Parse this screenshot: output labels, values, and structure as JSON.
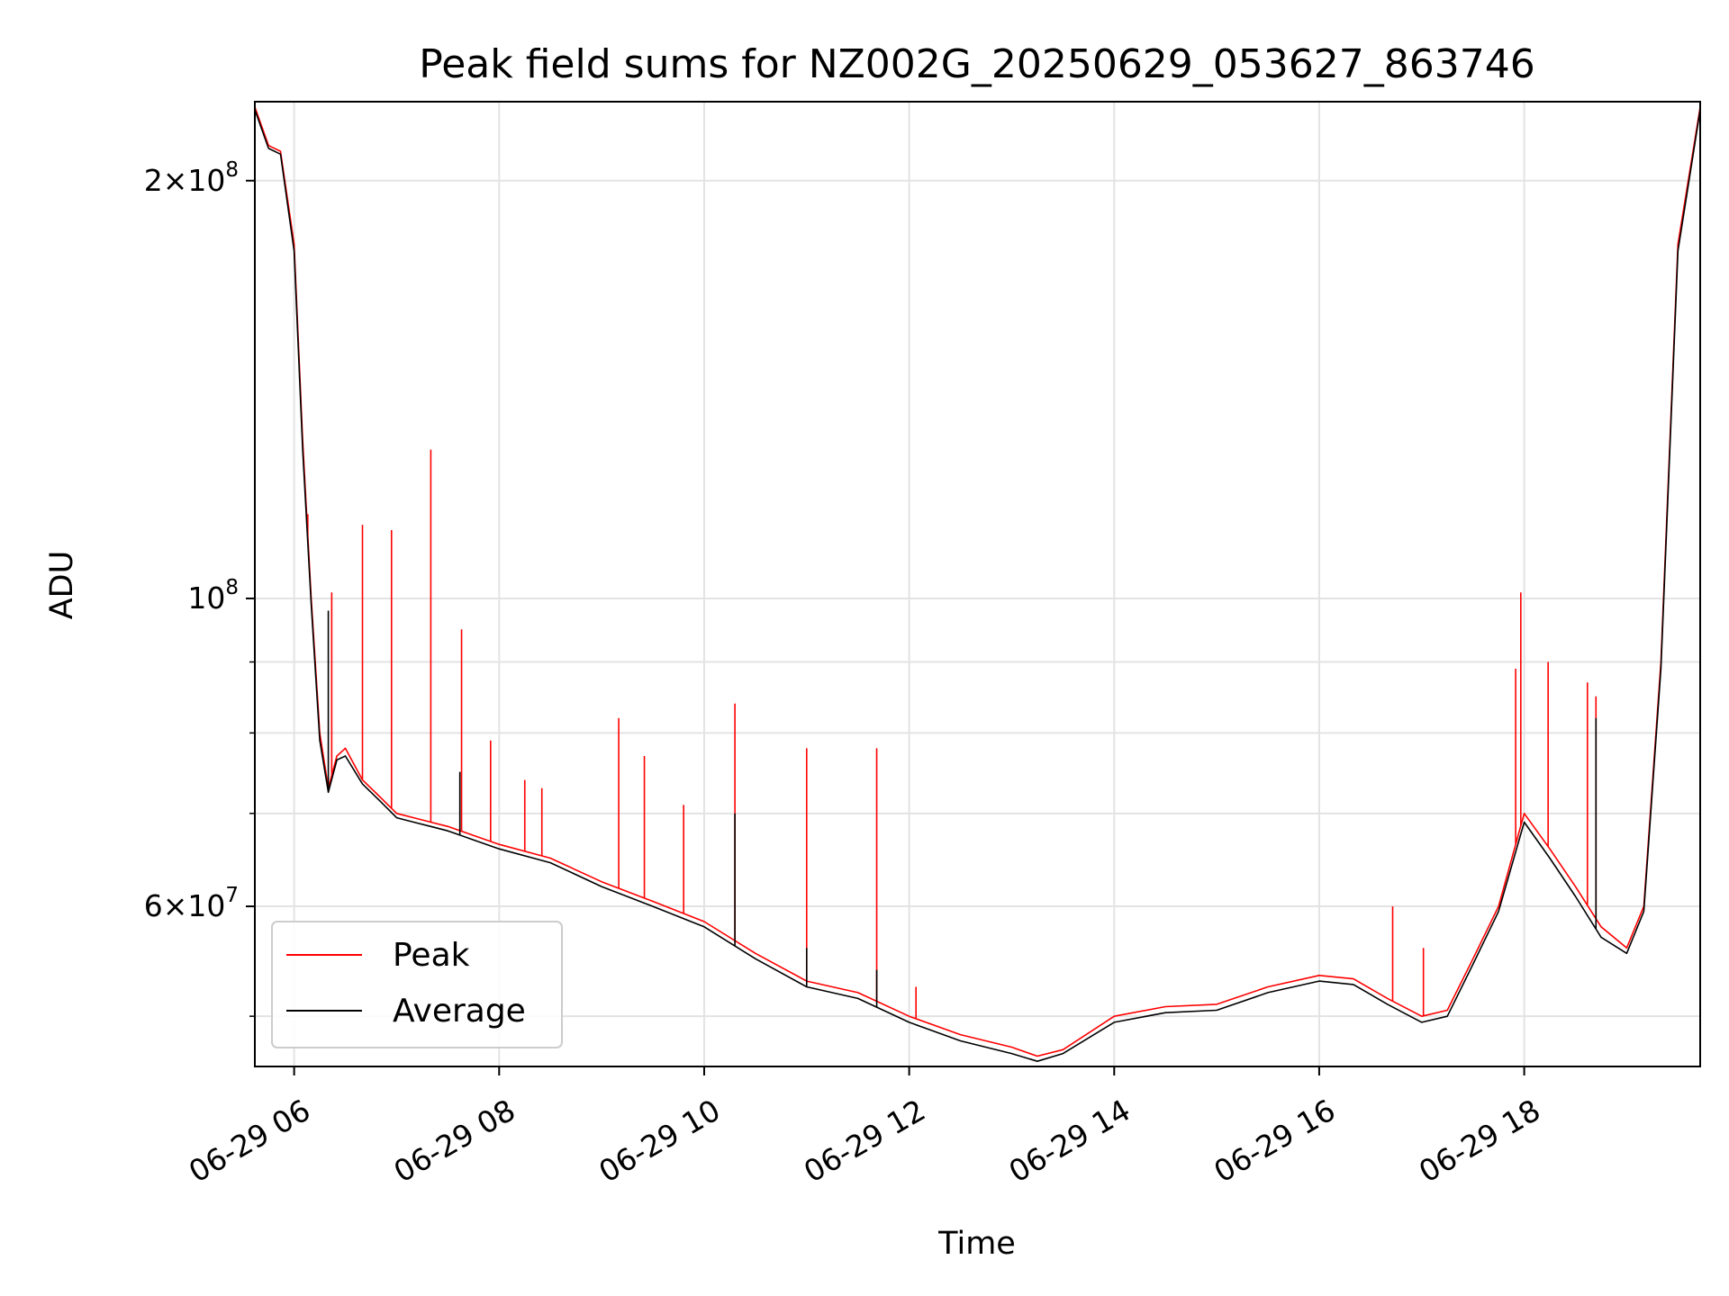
{
  "chart_data": {
    "type": "line",
    "title": "Peak field sums for NZ002G_20250629_053627_863746",
    "xlabel": "Time",
    "ylabel": "ADU",
    "y_scale": "log",
    "ylim": [
      46000000,
      228000000
    ],
    "xlim": [
      "2025-06-29 05:37",
      "2025-06-29 19:43"
    ],
    "grid": true,
    "legend_position": "lower-left",
    "x_tick_labels": [
      "06-29 06",
      "06-29 08",
      "06-29 10",
      "06-29 12",
      "06-29 14",
      "06-29 16",
      "06-29 18"
    ],
    "x_tick_values": [
      "2025-06-29 06:00",
      "2025-06-29 08:00",
      "2025-06-29 10:00",
      "2025-06-29 12:00",
      "2025-06-29 14:00",
      "2025-06-29 16:00",
      "2025-06-29 18:00"
    ],
    "y_major_ticks": [
      {
        "value": 60000000,
        "mantissa": "6",
        "exponent": "7"
      },
      {
        "value": 100000000,
        "mantissa": "",
        "exponent": "8"
      },
      {
        "value": 200000000,
        "mantissa": "2",
        "exponent": "8"
      }
    ],
    "y_minor_ticks": [
      50000000,
      70000000,
      80000000,
      90000000,
      300000000
    ],
    "series": [
      {
        "name": "Peak",
        "color": "#ff0000",
        "x": [
          "2025-06-29 05:37",
          "2025-06-29 05:45",
          "2025-06-29 05:52",
          "2025-06-29 06:00",
          "2025-06-29 06:05",
          "2025-06-29 06:10",
          "2025-06-29 06:15",
          "2025-06-29 06:20",
          "2025-06-29 06:25",
          "2025-06-29 06:30",
          "2025-06-29 06:40",
          "2025-06-29 06:50",
          "2025-06-29 07:00",
          "2025-06-29 07:10",
          "2025-06-29 07:20",
          "2025-06-29 07:30",
          "2025-06-29 07:45",
          "2025-06-29 08:00",
          "2025-06-29 08:30",
          "2025-06-29 09:00",
          "2025-06-29 09:30",
          "2025-06-29 10:00",
          "2025-06-29 10:30",
          "2025-06-29 11:00",
          "2025-06-29 11:30",
          "2025-06-29 12:00",
          "2025-06-29 12:30",
          "2025-06-29 13:00",
          "2025-06-29 13:15",
          "2025-06-29 13:30",
          "2025-06-29 14:00",
          "2025-06-29 14:30",
          "2025-06-29 15:00",
          "2025-06-29 15:30",
          "2025-06-29 16:00",
          "2025-06-29 16:20",
          "2025-06-29 16:40",
          "2025-06-29 17:00",
          "2025-06-29 17:15",
          "2025-06-29 17:30",
          "2025-06-29 17:45",
          "2025-06-29 18:00",
          "2025-06-29 18:15",
          "2025-06-29 18:30",
          "2025-06-29 18:45",
          "2025-06-29 19:00",
          "2025-06-29 19:10",
          "2025-06-29 19:20",
          "2025-06-29 19:30",
          "2025-06-29 19:43"
        ],
        "y": [
          226000000,
          212000000,
          210000000,
          180000000,
          130000000,
          100000000,
          80000000,
          73000000,
          77000000,
          78000000,
          74000000,
          72000000,
          70000000,
          69500000,
          69000000,
          68500000,
          67500000,
          66500000,
          65000000,
          62500000,
          60500000,
          58500000,
          55500000,
          53000000,
          52000000,
          50000000,
          48500000,
          47500000,
          46800000,
          47300000,
          50000000,
          50800000,
          51000000,
          52500000,
          53500000,
          53200000,
          51500000,
          50000000,
          50500000,
          55000000,
          60000000,
          70000000,
          66000000,
          62000000,
          58000000,
          56000000,
          60000000,
          90000000,
          180000000,
          226000000
        ],
        "spikes": [
          {
            "x": "2025-06-29 06:08",
            "y": 115000000
          },
          {
            "x": "2025-06-29 06:22",
            "y": 101000000
          },
          {
            "x": "2025-06-29 06:40",
            "y": 113000000
          },
          {
            "x": "2025-06-29 06:57",
            "y": 112000000
          },
          {
            "x": "2025-06-29 07:20",
            "y": 128000000
          },
          {
            "x": "2025-06-29 07:38",
            "y": 95000000
          },
          {
            "x": "2025-06-29 07:55",
            "y": 79000000
          },
          {
            "x": "2025-06-29 08:15",
            "y": 74000000
          },
          {
            "x": "2025-06-29 08:25",
            "y": 73000000
          },
          {
            "x": "2025-06-29 09:10",
            "y": 82000000
          },
          {
            "x": "2025-06-29 09:25",
            "y": 77000000
          },
          {
            "x": "2025-06-29 09:48",
            "y": 71000000
          },
          {
            "x": "2025-06-29 10:18",
            "y": 84000000
          },
          {
            "x": "2025-06-29 11:00",
            "y": 78000000
          },
          {
            "x": "2025-06-29 11:41",
            "y": 78000000
          },
          {
            "x": "2025-06-29 12:04",
            "y": 52500000
          },
          {
            "x": "2025-06-29 16:43",
            "y": 60000000
          },
          {
            "x": "2025-06-29 17:01",
            "y": 56000000
          },
          {
            "x": "2025-06-29 17:55",
            "y": 89000000
          },
          {
            "x": "2025-06-29 17:58",
            "y": 101000000
          },
          {
            "x": "2025-06-29 18:14",
            "y": 90000000
          },
          {
            "x": "2025-06-29 18:37",
            "y": 87000000
          },
          {
            "x": "2025-06-29 18:42",
            "y": 85000000
          }
        ]
      },
      {
        "name": "Average",
        "color": "#000000",
        "x": [
          "2025-06-29 05:37",
          "2025-06-29 05:45",
          "2025-06-29 05:52",
          "2025-06-29 06:00",
          "2025-06-29 06:05",
          "2025-06-29 06:10",
          "2025-06-29 06:15",
          "2025-06-29 06:20",
          "2025-06-29 06:25",
          "2025-06-29 06:30",
          "2025-06-29 06:40",
          "2025-06-29 06:50",
          "2025-06-29 07:00",
          "2025-06-29 07:10",
          "2025-06-29 07:20",
          "2025-06-29 07:30",
          "2025-06-29 07:45",
          "2025-06-29 08:00",
          "2025-06-29 08:30",
          "2025-06-29 09:00",
          "2025-06-29 09:30",
          "2025-06-29 10:00",
          "2025-06-29 10:30",
          "2025-06-29 11:00",
          "2025-06-29 11:30",
          "2025-06-29 12:00",
          "2025-06-29 12:30",
          "2025-06-29 13:00",
          "2025-06-29 13:15",
          "2025-06-29 13:30",
          "2025-06-29 14:00",
          "2025-06-29 14:30",
          "2025-06-29 15:00",
          "2025-06-29 15:30",
          "2025-06-29 16:00",
          "2025-06-29 16:20",
          "2025-06-29 16:40",
          "2025-06-29 17:00",
          "2025-06-29 17:15",
          "2025-06-29 17:30",
          "2025-06-29 17:45",
          "2025-06-29 18:00",
          "2025-06-29 18:15",
          "2025-06-29 18:30",
          "2025-06-29 18:45",
          "2025-06-29 19:00",
          "2025-06-29 19:10",
          "2025-06-29 19:20",
          "2025-06-29 19:30",
          "2025-06-29 19:43"
        ],
        "y": [
          225000000,
          211000000,
          209000000,
          178000000,
          128000000,
          99000000,
          79000000,
          72500000,
          76500000,
          77000000,
          73500000,
          71500000,
          69500000,
          69000000,
          68500000,
          68000000,
          67000000,
          66000000,
          64500000,
          62000000,
          60000000,
          58000000,
          55000000,
          52500000,
          51500000,
          49500000,
          48000000,
          47000000,
          46400000,
          47000000,
          49500000,
          50300000,
          50500000,
          52000000,
          53000000,
          52700000,
          51000000,
          49500000,
          50000000,
          54500000,
          59500000,
          69000000,
          65000000,
          61000000,
          57000000,
          55500000,
          59500000,
          89000000,
          178000000,
          225000000
        ],
        "spikes": [
          {
            "x": "2025-06-29 06:20",
            "y": 98000000
          },
          {
            "x": "2025-06-29 07:37",
            "y": 75000000
          },
          {
            "x": "2025-06-29 10:18",
            "y": 70000000
          },
          {
            "x": "2025-06-29 11:00",
            "y": 56000000
          },
          {
            "x": "2025-06-29 11:41",
            "y": 54000000
          },
          {
            "x": "2025-06-29 18:42",
            "y": 82000000
          }
        ]
      }
    ]
  }
}
